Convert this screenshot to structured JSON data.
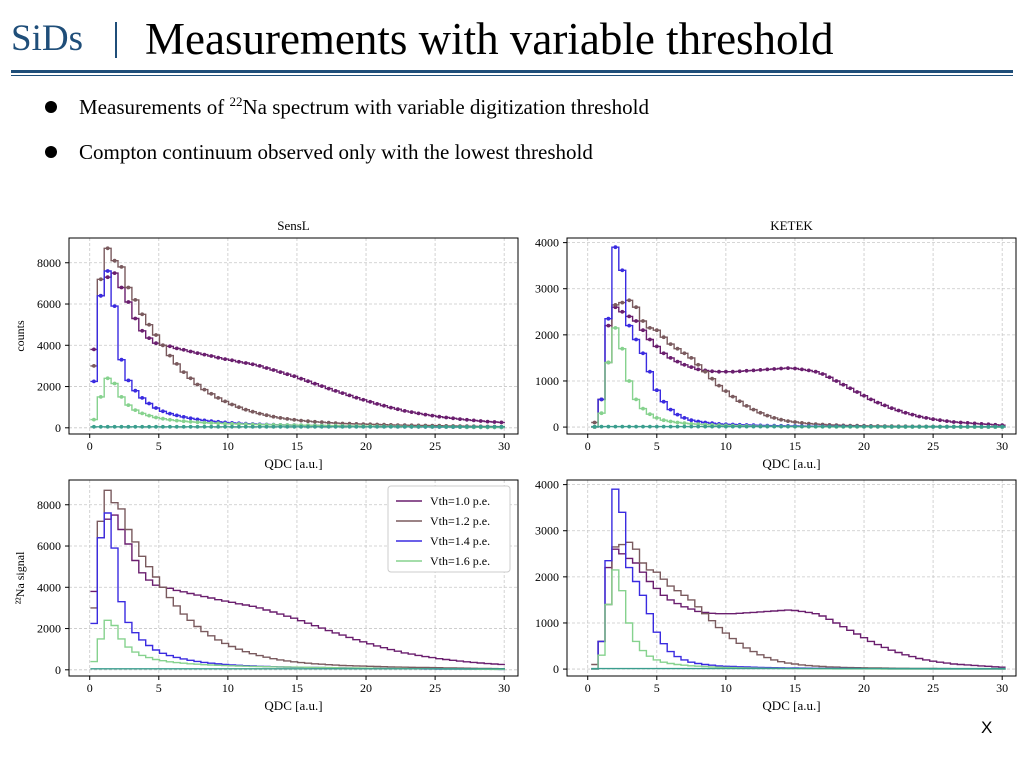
{
  "header": {
    "brand": "SiDs",
    "title": "Measurements with variable threshold"
  },
  "bullets": [
    {
      "before": "Measurements of ",
      "sup": "22",
      "after": "Na spectrum with variable digitization threshold"
    },
    {
      "text": "Compton continuum observed only with the lowest threshold"
    }
  ],
  "footer_mark": "X",
  "colors": {
    "brand": "#1f4e79",
    "v10": "#6a1e6e",
    "v12": "#7a5a5e",
    "v14": "#3a2be0",
    "v16": "#86d28e"
  },
  "chart_data": [
    {
      "type": "line",
      "style": "step",
      "title": "SensL",
      "xlabel": "QDC [a.u.]",
      "ylabel": "counts",
      "xlim": [
        -1.5,
        31
      ],
      "ylim": [
        -300,
        9200
      ],
      "xticks": [
        0,
        5,
        10,
        15,
        20,
        25,
        30
      ],
      "yticks": [
        0,
        2000,
        4000,
        6000,
        8000
      ],
      "grid": true,
      "markers": true,
      "legend": "none",
      "x": [
        0.3,
        0.8,
        1.3,
        1.8,
        2.3,
        2.8,
        3.3,
        3.8,
        4.3,
        4.8,
        5.3,
        5.8,
        6.3,
        6.8,
        7.3,
        7.8,
        8.3,
        8.8,
        9.3,
        9.8,
        10.3,
        10.8,
        11.3,
        11.8,
        12.3,
        12.8,
        13.3,
        13.8,
        14.3,
        14.8,
        15.3,
        15.8,
        16.3,
        16.8,
        17.3,
        17.8,
        18.3,
        18.8,
        19.3,
        19.8,
        20.3,
        20.8,
        21.3,
        21.8,
        22.3,
        22.8,
        23.3,
        23.8,
        24.3,
        24.8,
        25.3,
        25.8,
        26.3,
        26.8,
        27.3,
        27.8,
        28.3,
        28.8,
        29.3,
        29.8
      ],
      "series": [
        {
          "name": "Vth=1.0 p.e.",
          "color": "#6a1e6e",
          "values": [
            3800,
            6400,
            7300,
            7500,
            6800,
            6100,
            5300,
            4700,
            4350,
            4100,
            4000,
            3950,
            3850,
            3780,
            3700,
            3620,
            3550,
            3480,
            3400,
            3330,
            3270,
            3200,
            3140,
            3080,
            3000,
            2900,
            2800,
            2700,
            2600,
            2500,
            2380,
            2260,
            2140,
            2020,
            1900,
            1790,
            1680,
            1570,
            1460,
            1360,
            1260,
            1160,
            1070,
            980,
            900,
            820,
            760,
            700,
            640,
            590,
            540,
            500,
            460,
            420,
            390,
            360,
            330,
            300,
            280,
            260
          ]
        },
        {
          "name": "Vth=1.2 p.e.",
          "color": "#7a5a5e",
          "values": [
            3000,
            7200,
            8700,
            8100,
            7800,
            6800,
            6200,
            5500,
            5000,
            4500,
            4000,
            3500,
            3100,
            2700,
            2400,
            2100,
            1850,
            1650,
            1450,
            1280,
            1130,
            1000,
            880,
            780,
            690,
            610,
            540,
            480,
            430,
            390,
            350,
            320,
            290,
            270,
            250,
            230,
            210,
            200,
            190,
            180,
            170,
            160,
            150,
            140,
            130,
            125,
            120,
            115,
            110,
            105,
            100,
            95,
            90,
            85,
            80,
            75,
            70,
            65,
            60,
            55
          ]
        },
        {
          "name": "Vth=1.4 p.e.",
          "color": "#3a2be0",
          "values": [
            2250,
            6400,
            7600,
            5900,
            3300,
            2300,
            1800,
            1450,
            1180,
            960,
            800,
            690,
            600,
            530,
            460,
            410,
            360,
            320,
            290,
            260,
            240,
            220,
            200,
            185,
            170,
            160,
            150,
            140,
            130,
            125,
            120,
            115,
            110,
            105,
            100,
            95,
            90,
            85,
            80,
            75,
            70,
            65,
            60,
            58,
            55,
            52,
            50,
            48,
            45,
            42,
            40,
            38,
            36,
            34,
            32,
            30,
            28,
            26,
            24,
            22
          ]
        },
        {
          "name": "Vth=1.6 p.e.",
          "color": "#86d28e",
          "values": [
            400,
            1500,
            2400,
            2150,
            1500,
            1100,
            860,
            700,
            590,
            500,
            440,
            390,
            350,
            320,
            290,
            270,
            250,
            235,
            220,
            205,
            195,
            185,
            175,
            165,
            155,
            150,
            145,
            140,
            135,
            130,
            125,
            120,
            115,
            110,
            105,
            100,
            95,
            90,
            86,
            82,
            78,
            74,
            70,
            66,
            62,
            58,
            55,
            52,
            49,
            46,
            43,
            40,
            37,
            34,
            31,
            28,
            26,
            24,
            22,
            20
          ]
        },
        {
          "name": "baseline",
          "color": "#3a9e8e",
          "values": [
            50,
            50,
            50,
            50,
            50,
            50,
            50,
            50,
            50,
            50,
            50,
            50,
            50,
            50,
            50,
            50,
            50,
            50,
            50,
            50,
            50,
            50,
            50,
            50,
            50,
            50,
            50,
            50,
            50,
            50,
            50,
            50,
            50,
            50,
            50,
            50,
            50,
            50,
            50,
            50,
            50,
            50,
            50,
            50,
            50,
            50,
            50,
            50,
            50,
            50,
            50,
            50,
            50,
            50,
            50,
            50,
            50,
            50,
            50,
            50
          ]
        }
      ]
    },
    {
      "type": "line",
      "style": "step",
      "title": "KETEK",
      "xlabel": "QDC [a.u.]",
      "ylabel": "",
      "xlim": [
        -1.5,
        31
      ],
      "ylim": [
        -150,
        4100
      ],
      "xticks": [
        0,
        5,
        10,
        15,
        20,
        25,
        30
      ],
      "yticks": [
        0,
        1000,
        2000,
        3000,
        4000
      ],
      "grid": true,
      "markers": true,
      "legend": "none",
      "x": [
        0.5,
        1.0,
        1.5,
        2.0,
        2.5,
        3.0,
        3.5,
        4.0,
        4.5,
        5.0,
        5.5,
        6.0,
        6.5,
        7.0,
        7.5,
        8.0,
        8.5,
        9.0,
        9.5,
        10.0,
        10.5,
        11.0,
        11.5,
        12.0,
        12.5,
        13.0,
        13.5,
        14.0,
        14.5,
        15.0,
        15.5,
        16.0,
        16.5,
        17.0,
        17.5,
        18.0,
        18.5,
        19.0,
        19.5,
        20.0,
        20.5,
        21.0,
        21.5,
        22.0,
        22.5,
        23.0,
        23.5,
        24.0,
        24.5,
        25.0,
        25.5,
        26.0,
        26.5,
        27.0,
        27.5,
        28.0,
        28.5,
        29.0,
        29.5,
        30.0
      ],
      "series": [
        {
          "name": "Vth=1.0 p.e.",
          "color": "#6a1e6e",
          "values": [
            0,
            600,
            2200,
            2600,
            2500,
            2400,
            2300,
            2100,
            1900,
            1750,
            1600,
            1500,
            1420,
            1350,
            1300,
            1250,
            1230,
            1210,
            1200,
            1200,
            1200,
            1210,
            1220,
            1230,
            1240,
            1250,
            1260,
            1270,
            1280,
            1270,
            1250,
            1230,
            1200,
            1150,
            1080,
            1000,
            920,
            840,
            760,
            680,
            600,
            530,
            470,
            410,
            360,
            310,
            270,
            230,
            200,
            170,
            150,
            130,
            110,
            100,
            90,
            80,
            70,
            60,
            50,
            40
          ]
        },
        {
          "name": "Vth=1.2 p.e.",
          "color": "#7a5a5e",
          "values": [
            100,
            600,
            1400,
            2650,
            2700,
            2750,
            2600,
            2300,
            2150,
            2100,
            1950,
            1800,
            1700,
            1600,
            1500,
            1350,
            1200,
            1050,
            900,
            780,
            660,
            560,
            460,
            380,
            310,
            250,
            200,
            160,
            130,
            110,
            90,
            75,
            65,
            55,
            48,
            42,
            37,
            33,
            30,
            27,
            25,
            23,
            21,
            19,
            17,
            16,
            15,
            14,
            13,
            12,
            11,
            10,
            9,
            8,
            7,
            6,
            5,
            4,
            3,
            2
          ]
        },
        {
          "name": "Vth=1.4 p.e.",
          "color": "#3a2be0",
          "values": [
            0,
            600,
            2350,
            3900,
            3400,
            2200,
            1900,
            1600,
            1200,
            800,
            550,
            380,
            270,
            200,
            150,
            120,
            100,
            85,
            70,
            60,
            55,
            50,
            45,
            40,
            36,
            33,
            30,
            27,
            25,
            23,
            21,
            19,
            17,
            15,
            14,
            13,
            12,
            11,
            10,
            9,
            8,
            7,
            6,
            5,
            5,
            4,
            4,
            3,
            3,
            2,
            2,
            2,
            1,
            1,
            1,
            1,
            0,
            0,
            0,
            0
          ]
        },
        {
          "name": "Vth=1.6 p.e.",
          "color": "#86d28e",
          "values": [
            0,
            300,
            1400,
            2150,
            1700,
            1000,
            600,
            400,
            280,
            200,
            150,
            120,
            100,
            85,
            72,
            62,
            54,
            47,
            41,
            36,
            32,
            28,
            25,
            22,
            20,
            18,
            16,
            14,
            12,
            11,
            10,
            9,
            8,
            7,
            6,
            5,
            5,
            4,
            4,
            3,
            3,
            3,
            2,
            2,
            2,
            2,
            1,
            1,
            1,
            1,
            1,
            1,
            1,
            0,
            0,
            0,
            0,
            0,
            0,
            0
          ]
        },
        {
          "name": "baseline",
          "color": "#3a9e8e",
          "values": [
            10,
            10,
            10,
            10,
            10,
            10,
            10,
            10,
            10,
            10,
            10,
            10,
            10,
            10,
            10,
            10,
            10,
            10,
            10,
            10,
            10,
            10,
            10,
            10,
            10,
            10,
            10,
            10,
            10,
            10,
            10,
            10,
            10,
            10,
            10,
            10,
            10,
            10,
            10,
            10,
            10,
            10,
            10,
            10,
            10,
            10,
            10,
            10,
            10,
            10,
            10,
            10,
            10,
            10,
            10,
            10,
            10,
            10,
            10,
            10
          ]
        }
      ]
    },
    {
      "type": "line",
      "style": "step",
      "title": "",
      "xlabel": "QDC [a.u.]",
      "ylabel": "²²Na signal",
      "xlim": [
        -1.5,
        31
      ],
      "ylim": [
        -300,
        9200
      ],
      "xticks": [
        0,
        5,
        10,
        15,
        20,
        25,
        30
      ],
      "yticks": [
        0,
        2000,
        4000,
        6000,
        8000
      ],
      "grid": true,
      "markers": false,
      "legend": "top-right",
      "legend_entries": [
        "Vth=1.0 p.e.",
        "Vth=1.2 p.e.",
        "Vth=1.4 p.e.",
        "Vth=1.6 p.e."
      ],
      "same_data_as": 0
    },
    {
      "type": "line",
      "style": "step",
      "title": "",
      "xlabel": "QDC [a.u.]",
      "ylabel": "",
      "xlim": [
        -1.5,
        31
      ],
      "ylim": [
        -150,
        4100
      ],
      "xticks": [
        0,
        5,
        10,
        15,
        20,
        25,
        30
      ],
      "yticks": [
        0,
        1000,
        2000,
        3000,
        4000
      ],
      "grid": true,
      "markers": false,
      "legend": "none",
      "same_data_as": 1
    }
  ]
}
